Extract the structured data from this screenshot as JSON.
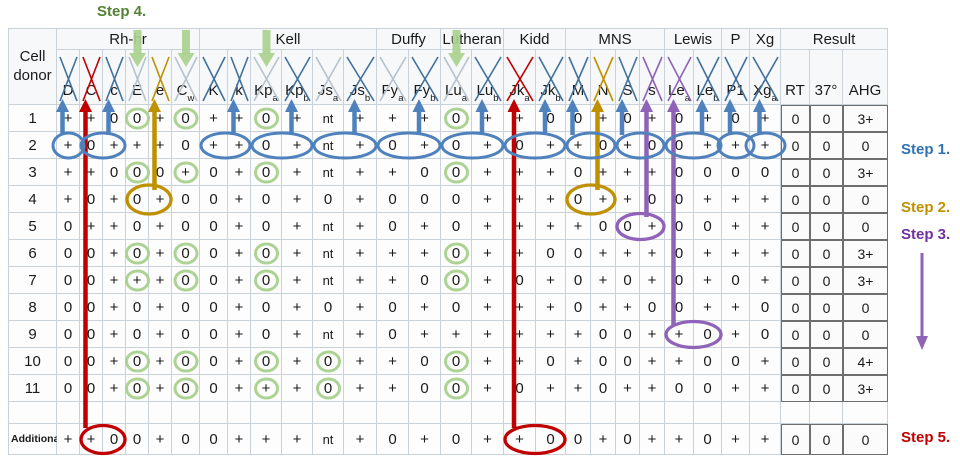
{
  "steps": {
    "step1": {
      "label": "Step 1.",
      "color": "#2e74b5"
    },
    "step2": {
      "label": "Step 2.",
      "color": "#bf9000"
    },
    "step3": {
      "label": "Step 3.",
      "color": "#7030a0"
    },
    "step4": {
      "label": "Step 4.",
      "color": "#538135"
    },
    "step5": {
      "label": "Step 5.",
      "color": "#c00000"
    }
  },
  "table": {
    "corner": {
      "line1": "Cell",
      "line2": "donor"
    },
    "groups": [
      {
        "label": "Rh-hr",
        "span": 6
      },
      {
        "label": "Kell",
        "span": 6
      },
      {
        "label": "Duffy",
        "span": 2
      },
      {
        "label": "Lutheran",
        "span": 2
      },
      {
        "label": "Kidd",
        "span": 2
      },
      {
        "label": "MNS",
        "span": 4
      },
      {
        "label": "Lewis",
        "span": 2
      },
      {
        "label": "P",
        "span": 1
      },
      {
        "label": "Xg",
        "span": 1
      },
      {
        "label": "Result",
        "span": 3
      }
    ],
    "columns": [
      {
        "id": "D",
        "label": "D",
        "cross": "blue"
      },
      {
        "id": "C",
        "label": "C",
        "cross": "red"
      },
      {
        "id": "c",
        "label": "c",
        "cross": "blue"
      },
      {
        "id": "E",
        "label": "E",
        "cross": "light"
      },
      {
        "id": "e",
        "label": "e",
        "cross": "gold"
      },
      {
        "id": "Cw",
        "label": "C^w",
        "cross": "light"
      },
      {
        "id": "K",
        "label": "K",
        "cross": "blue"
      },
      {
        "id": "k",
        "label": "k",
        "cross": "blue"
      },
      {
        "id": "Kpa",
        "label": "Kp^a",
        "cross": "light"
      },
      {
        "id": "Kpb",
        "label": "Kp^b",
        "cross": "blue"
      },
      {
        "id": "Jsa",
        "label": "Js^a",
        "cross": "light"
      },
      {
        "id": "Jsb",
        "label": "Js^b",
        "cross": "blue"
      },
      {
        "id": "Fya",
        "label": "Fy^a",
        "cross": "light"
      },
      {
        "id": "Fyb",
        "label": "Fy^b",
        "cross": "blue"
      },
      {
        "id": "Lua",
        "label": "Lu^a",
        "cross": "light"
      },
      {
        "id": "Lub",
        "label": "Lu^b",
        "cross": "blue"
      },
      {
        "id": "Jka",
        "label": "Jk^a",
        "cross": "red"
      },
      {
        "id": "Jkb",
        "label": "Jk^b",
        "cross": "blue"
      },
      {
        "id": "M",
        "label": "M",
        "cross": "blue"
      },
      {
        "id": "N",
        "label": "N",
        "cross": "gold"
      },
      {
        "id": "S",
        "label": "S",
        "cross": "blue"
      },
      {
        "id": "s",
        "label": "s",
        "cross": "purple"
      },
      {
        "id": "Lea",
        "label": "Le^a",
        "cross": "purple"
      },
      {
        "id": "Leb",
        "label": "Le^b",
        "cross": "blue"
      },
      {
        "id": "P1",
        "label": "P1",
        "cross": "blue"
      },
      {
        "id": "Xga",
        "label": "Xg^a",
        "cross": "blue"
      },
      {
        "id": "RT",
        "label": "RT",
        "cross": "none"
      },
      {
        "id": "T37",
        "label": "37°",
        "cross": "none"
      },
      {
        "id": "AHG",
        "label": "AHG",
        "cross": "none"
      }
    ],
    "rows": [
      {
        "donor": "1",
        "values": [
          "+",
          "+",
          "0",
          "0",
          "+",
          "0",
          "+",
          "+",
          "0",
          "+",
          "nt",
          "+",
          "+",
          "+",
          "0",
          "+",
          "+",
          "0",
          "0",
          "+",
          "0",
          "+",
          "0",
          "+",
          "0",
          "+",
          "0",
          "0",
          "3+"
        ]
      },
      {
        "donor": "2",
        "values": [
          "+",
          "0",
          "+",
          "+",
          "+",
          "0",
          "+",
          "+",
          "0",
          "+",
          "nt",
          "+",
          "0",
          "+",
          "0",
          "+",
          "0",
          "+",
          "+",
          "0",
          "+",
          "0",
          "0",
          "+",
          "+",
          "+",
          "0",
          "0",
          "0"
        ]
      },
      {
        "donor": "3",
        "values": [
          "+",
          "+",
          "0",
          "0",
          "0",
          "+",
          "0",
          "+",
          "0",
          "+",
          "nt",
          "+",
          "+",
          "0",
          "0",
          "+",
          "+",
          "+",
          "0",
          "+",
          "+",
          "+",
          "0",
          "0",
          "0",
          "0",
          "0",
          "0",
          "3+"
        ]
      },
      {
        "donor": "4",
        "values": [
          "+",
          "0",
          "+",
          "0",
          "+",
          "0",
          "0",
          "+",
          "0",
          "+",
          "0",
          "+",
          "0",
          "0",
          "0",
          "+",
          "+",
          "+",
          "0",
          "+",
          "+",
          "0",
          "0",
          "+",
          "+",
          "+",
          "0",
          "0",
          "0"
        ]
      },
      {
        "donor": "5",
        "values": [
          "0",
          "+",
          "+",
          "0",
          "+",
          "0",
          "0",
          "+",
          "0",
          "+",
          "nt",
          "+",
          "0",
          "+",
          "0",
          "+",
          "+",
          "+",
          "+",
          "0",
          "0",
          "+",
          "0",
          "0",
          "+",
          "+",
          "0",
          "0",
          "0"
        ]
      },
      {
        "donor": "6",
        "values": [
          "0",
          "0",
          "+",
          "0",
          "+",
          "0",
          "0",
          "+",
          "0",
          "+",
          "nt",
          "+",
          "+",
          "+",
          "0",
          "+",
          "+",
          "0",
          "0",
          "+",
          "+",
          "+",
          "0",
          "+",
          "+",
          "+",
          "0",
          "0",
          "3+"
        ]
      },
      {
        "donor": "7",
        "values": [
          "0",
          "0",
          "+",
          "+",
          "+",
          "0",
          "0",
          "+",
          "0",
          "+",
          "nt",
          "+",
          "+",
          "0",
          "0",
          "+",
          "0",
          "+",
          "0",
          "+",
          "0",
          "+",
          "0",
          "+",
          "0",
          "+",
          "0",
          "0",
          "3+"
        ]
      },
      {
        "donor": "8",
        "values": [
          "0",
          "0",
          "+",
          "0",
          "+",
          "0",
          "0",
          "+",
          "0",
          "+",
          "0",
          "+",
          "0",
          "+",
          "0",
          "+",
          "+",
          "+",
          "0",
          "+",
          "+",
          "0",
          "0",
          "+",
          "+",
          "0",
          "0",
          "0",
          "0"
        ]
      },
      {
        "donor": "9",
        "values": [
          "0",
          "0",
          "+",
          "0",
          "+",
          "0",
          "0",
          "+",
          "0",
          "+",
          "nt",
          "+",
          "0",
          "+",
          "+",
          "+",
          "+",
          "+",
          "+",
          "0",
          "0",
          "+",
          "+",
          "0",
          "+",
          "0",
          "0",
          "0",
          "0"
        ]
      },
      {
        "donor": "10",
        "values": [
          "0",
          "0",
          "+",
          "0",
          "+",
          "0",
          "0",
          "+",
          "0",
          "+",
          "0",
          "+",
          "+",
          "0",
          "0",
          "+",
          "+",
          "0",
          "+",
          "0",
          "0",
          "+",
          "+",
          "0",
          "0",
          "+",
          "0",
          "0",
          "4+"
        ]
      },
      {
        "donor": "11",
        "values": [
          "0",
          "0",
          "+",
          "0",
          "+",
          "0",
          "0",
          "+",
          "+",
          "+",
          "0",
          "+",
          "+",
          "0",
          "0",
          "+",
          "0",
          "+",
          "+",
          "0",
          "+",
          "+",
          "0",
          "0",
          "+",
          "+",
          "0",
          "0",
          "3+"
        ]
      },
      {
        "donor": "Additional",
        "values": [
          "+",
          "+",
          "0",
          "0",
          "+",
          "0",
          "0",
          "+",
          "+",
          "+",
          "nt",
          "+",
          "0",
          "+",
          "0",
          "+",
          "+",
          "0",
          "0",
          "+",
          "0",
          "+",
          "+",
          "0",
          "+",
          "+",
          "0",
          "0",
          "0"
        ]
      }
    ]
  },
  "annotations": {
    "green_arrow_columns": [
      "E",
      "Cw",
      "Kpa",
      "Lua"
    ],
    "green_circles": [
      {
        "row": 0,
        "cols": [
          "E",
          "Cw",
          "Kpa",
          "Lua"
        ]
      },
      {
        "row": 2,
        "cols": [
          "E",
          "Cw",
          "Kpa",
          "Lua"
        ]
      },
      {
        "row": 5,
        "cols": [
          "E",
          "Cw",
          "Kpa",
          "Lua"
        ]
      },
      {
        "row": 6,
        "cols": [
          "E",
          "Cw",
          "Kpa",
          "Lua"
        ]
      },
      {
        "row": 9,
        "cols": [
          "E",
          "Cw",
          "Kpa",
          "Jsa",
          "Lua"
        ]
      },
      {
        "row": 10,
        "cols": [
          "E",
          "Cw",
          "Kpa",
          "Jsa",
          "Lua"
        ]
      }
    ],
    "ellipses": [
      {
        "row": 1,
        "cols": [
          "D"
        ],
        "color": "blue"
      },
      {
        "row": 1,
        "cols": [
          "C",
          "c"
        ],
        "color": "blue"
      },
      {
        "row": 1,
        "cols": [
          "K",
          "k"
        ],
        "color": "blue"
      },
      {
        "row": 1,
        "cols": [
          "Kpa",
          "Kpb"
        ],
        "color": "blue"
      },
      {
        "row": 1,
        "cols": [
          "Jsa",
          "Jsb"
        ],
        "color": "blue"
      },
      {
        "row": 1,
        "cols": [
          "Fya",
          "Fyb"
        ],
        "color": "blue"
      },
      {
        "row": 1,
        "cols": [
          "Lua",
          "Lub"
        ],
        "color": "blue"
      },
      {
        "row": 1,
        "cols": [
          "Jka",
          "Jkb"
        ],
        "color": "blue"
      },
      {
        "row": 1,
        "cols": [
          "M",
          "N"
        ],
        "color": "blue"
      },
      {
        "row": 1,
        "cols": [
          "S",
          "s"
        ],
        "color": "blue"
      },
      {
        "row": 1,
        "cols": [
          "Lea",
          "Leb"
        ],
        "color": "blue"
      },
      {
        "row": 1,
        "cols": [
          "P1"
        ],
        "color": "blue"
      },
      {
        "row": 1,
        "cols": [
          "Xga"
        ],
        "color": "blue"
      },
      {
        "row": 3,
        "cols": [
          "E",
          "e"
        ],
        "color": "gold"
      },
      {
        "row": 3,
        "cols": [
          "M",
          "N"
        ],
        "color": "gold"
      },
      {
        "row": 4,
        "cols": [
          "S",
          "s"
        ],
        "color": "purple"
      },
      {
        "row": 8,
        "cols": [
          "Lea",
          "Leb"
        ],
        "color": "purple"
      },
      {
        "row": 11,
        "cols": [
          "C",
          "c"
        ],
        "color": "red"
      },
      {
        "row": 11,
        "cols": [
          "Jka",
          "Jkb"
        ],
        "color": "red"
      }
    ],
    "up_arrows": [
      {
        "col": "D",
        "to_row": 1,
        "color": "blue"
      },
      {
        "col": "c",
        "to_row": 1,
        "color": "blue"
      },
      {
        "col": "k",
        "to_row": 1,
        "color": "blue"
      },
      {
        "col": "Kpb",
        "to_row": 1,
        "color": "blue"
      },
      {
        "col": "Jsb",
        "to_row": 1,
        "color": "blue"
      },
      {
        "col": "Fyb",
        "to_row": 1,
        "color": "blue"
      },
      {
        "col": "Lub",
        "to_row": 1,
        "color": "blue"
      },
      {
        "col": "Jkb",
        "to_row": 1,
        "color": "blue"
      },
      {
        "col": "M",
        "to_row": 1,
        "color": "blue"
      },
      {
        "col": "S",
        "to_row": 1,
        "color": "blue"
      },
      {
        "col": "Leb",
        "to_row": 1,
        "color": "blue"
      },
      {
        "col": "P1",
        "to_row": 1,
        "color": "blue"
      },
      {
        "col": "Xga",
        "to_row": 1,
        "color": "blue"
      },
      {
        "col": "C",
        "to_row": 11,
        "color": "red"
      },
      {
        "col": "Jka",
        "to_row": 11,
        "color": "red"
      },
      {
        "col": "e",
        "to_row": 3,
        "color": "gold"
      },
      {
        "col": "N",
        "to_row": 3,
        "color": "gold"
      },
      {
        "col": "s",
        "to_row": 4,
        "color": "purple"
      },
      {
        "col": "Lea",
        "to_row": 8,
        "color": "purple"
      }
    ],
    "margin_arrow": {
      "color": "purple",
      "direction": "down"
    }
  },
  "palette": {
    "blue": "#4f81bd",
    "red": "#c00000",
    "gold": "#bf9000",
    "purple": "#8e63b8",
    "green": "#a9d18e",
    "cross_blue": "#41719c",
    "cross_light": "#b6c2ce",
    "grid_line": "#c9d2da",
    "result_border": "#6e6e6e",
    "text": "#1a1a1a"
  }
}
